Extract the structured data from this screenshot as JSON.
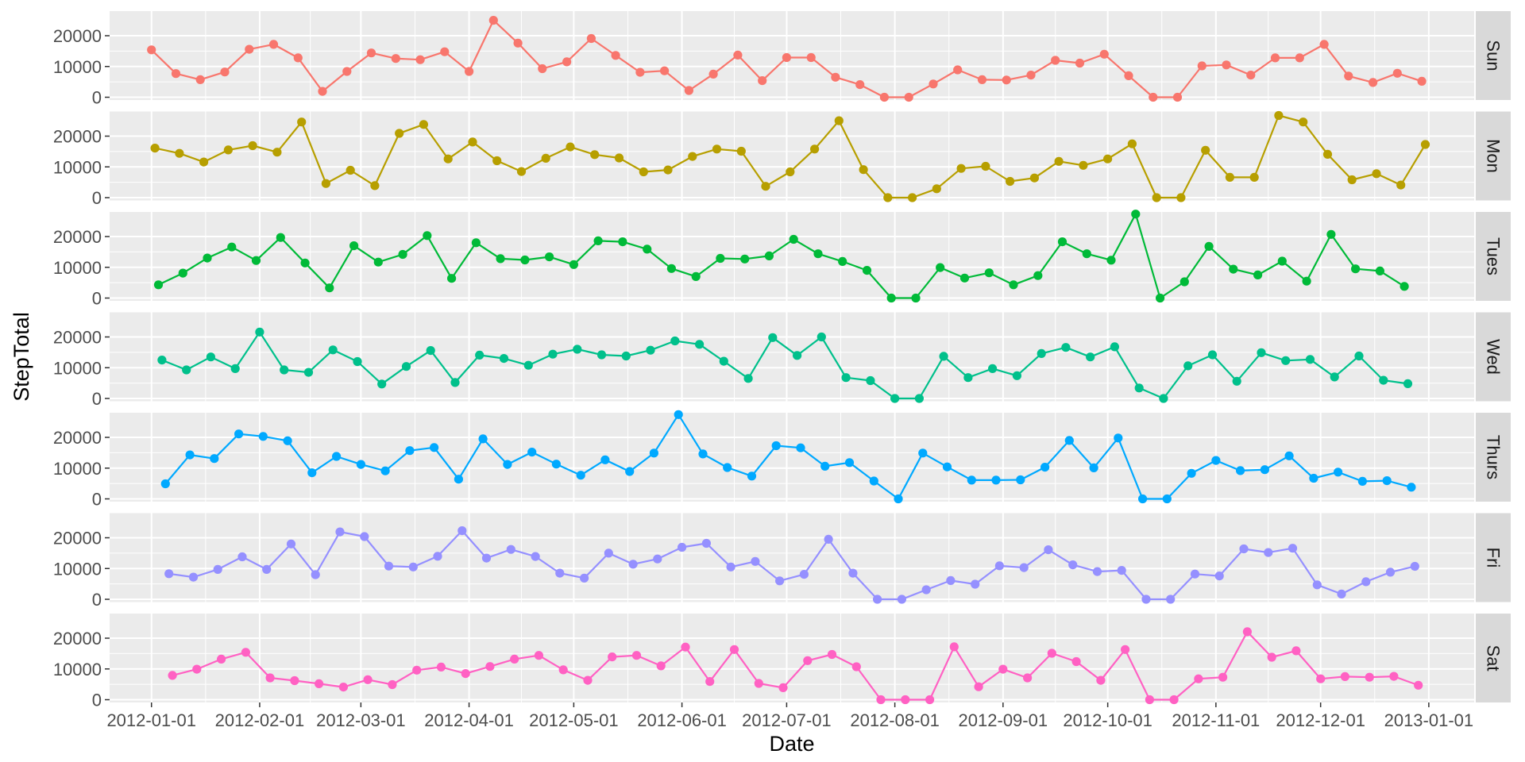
{
  "chart_data": {
    "type": "line",
    "facet": "rows",
    "xlabel": "Date",
    "ylabel": "StepTotal",
    "x_ticks": [
      "2012-01-01",
      "2012-02-01",
      "2012-03-01",
      "2012-04-01",
      "2012-05-01",
      "2012-06-01",
      "2012-07-01",
      "2012-08-01",
      "2012-09-01",
      "2012-10-01",
      "2012-11-01",
      "2012-12-01",
      "2013-01-01"
    ],
    "x_range": [
      "2011-12-20",
      "2013-01-14"
    ],
    "y_ticks": [
      0,
      10000,
      20000
    ],
    "ylim": [
      -900,
      28000
    ],
    "grid": true,
    "points": true,
    "series": [
      {
        "name": "Sun",
        "color": "#F8766D",
        "start": "2012-01-01",
        "values": [
          15400,
          7700,
          5700,
          8200,
          15600,
          17200,
          12800,
          1900,
          8400,
          14400,
          12600,
          12200,
          14800,
          8400,
          25000,
          17600,
          9300,
          11500,
          19100,
          13600,
          8100,
          8600,
          2200,
          7500,
          13700,
          5400,
          12900,
          12900,
          6500,
          4100,
          0,
          0,
          4300,
          8900,
          5700,
          5600,
          7200,
          12000,
          11100,
          14000,
          7000,
          0,
          0,
          10200,
          10500,
          7200,
          12800,
          12800,
          17200,
          6900,
          4800,
          7800,
          5200
        ]
      },
      {
        "name": "Mon",
        "color": "#B79F00",
        "start": "2012-01-02",
        "values": [
          16100,
          14400,
          11600,
          15500,
          16900,
          14800,
          24600,
          4600,
          8900,
          3900,
          20900,
          23800,
          12600,
          18100,
          12000,
          8500,
          12800,
          16500,
          14000,
          12900,
          8400,
          9000,
          13400,
          15800,
          15100,
          3700,
          8400,
          15800,
          25000,
          9100,
          0,
          0,
          2900,
          9500,
          10200,
          5300,
          6400,
          11800,
          10500,
          12600,
          17500,
          0,
          0,
          15400,
          6600,
          6600,
          26700,
          24600,
          14100,
          5800,
          7800,
          4100,
          17300
        ]
      },
      {
        "name": "Tues",
        "color": "#00BA38",
        "start": "2012-01-03",
        "values": [
          4300,
          8100,
          13000,
          16600,
          12200,
          19700,
          11400,
          3300,
          17000,
          11700,
          14200,
          20300,
          6400,
          18000,
          12800,
          12400,
          13400,
          10900,
          18600,
          18300,
          15900,
          9600,
          7000,
          12900,
          12700,
          13700,
          19100,
          14400,
          11900,
          9000,
          0,
          0,
          9900,
          6500,
          8200,
          4300,
          7300,
          18300,
          14400,
          12300,
          27300,
          0,
          5300,
          16800,
          9400,
          7500,
          12000,
          5500,
          20700,
          9500,
          8800,
          3800
        ]
      },
      {
        "name": "Wed",
        "color": "#00BFC4_unused",
        "color2": "#00C08B",
        "start": "2012-01-04",
        "values": [
          12500,
          9300,
          13500,
          9700,
          21600,
          9300,
          8500,
          15800,
          12000,
          4700,
          10400,
          15600,
          5200,
          14100,
          13000,
          10800,
          14400,
          16000,
          14200,
          13800,
          15700,
          18700,
          17600,
          12100,
          6500,
          19800,
          14000,
          20000,
          6800,
          5800,
          0,
          0,
          13700,
          6800,
          9700,
          7400,
          14600,
          16600,
          13500,
          16800,
          3400,
          0,
          10600,
          14200,
          5600,
          14900,
          12300,
          12700,
          7000,
          13800,
          5900,
          4800
        ]
      },
      {
        "name": "Thurs",
        "color": "#00A9FF",
        "start": "2012-01-05",
        "values": [
          4900,
          14300,
          13100,
          21100,
          20300,
          18900,
          8500,
          13800,
          11200,
          9100,
          15700,
          16700,
          6400,
          19500,
          11200,
          15200,
          11300,
          7700,
          12700,
          8900,
          14900,
          27400,
          14600,
          10200,
          7400,
          17300,
          16600,
          10600,
          11800,
          5800,
          0,
          14900,
          10400,
          6100,
          6100,
          6200,
          10300,
          19000,
          10100,
          19800,
          0,
          0,
          8300,
          12500,
          9200,
          9500,
          14000,
          6700,
          8700,
          5700,
          5900,
          3800
        ]
      },
      {
        "name": "Fri",
        "color": "#C77CFF_unused",
        "color2": "#9590FF",
        "start": "2012-01-06",
        "values": [
          8300,
          7200,
          9700,
          13800,
          9700,
          18000,
          8000,
          21900,
          20400,
          10800,
          10500,
          14000,
          22300,
          13400,
          16200,
          13900,
          8500,
          6900,
          15000,
          11400,
          13100,
          16900,
          18200,
          10500,
          12300,
          6000,
          8100,
          19500,
          8500,
          0,
          0,
          3100,
          6100,
          4900,
          10900,
          10300,
          16100,
          11200,
          9000,
          9400,
          0,
          0,
          8200,
          7600,
          16400,
          15200,
          16600,
          4700,
          1700,
          5700,
          8800,
          10700
        ]
      },
      {
        "name": "Sat",
        "color": "#FF61CC_unused",
        "color2": "#FF61C3",
        "start": "2012-01-07",
        "values": [
          7900,
          9900,
          13200,
          15400,
          7100,
          6200,
          5200,
          4100,
          6500,
          4900,
          9600,
          10600,
          8500,
          10800,
          13200,
          14400,
          9700,
          6300,
          13900,
          14400,
          11000,
          17100,
          5900,
          16300,
          5300,
          3900,
          12700,
          14700,
          10700,
          0,
          0,
          0,
          17200,
          4200,
          9900,
          7100,
          15100,
          12400,
          6300,
          16300,
          0,
          0,
          6800,
          7300,
          22100,
          13800,
          15900,
          6800,
          7500,
          7300,
          7600,
          4700
        ]
      }
    ]
  }
}
